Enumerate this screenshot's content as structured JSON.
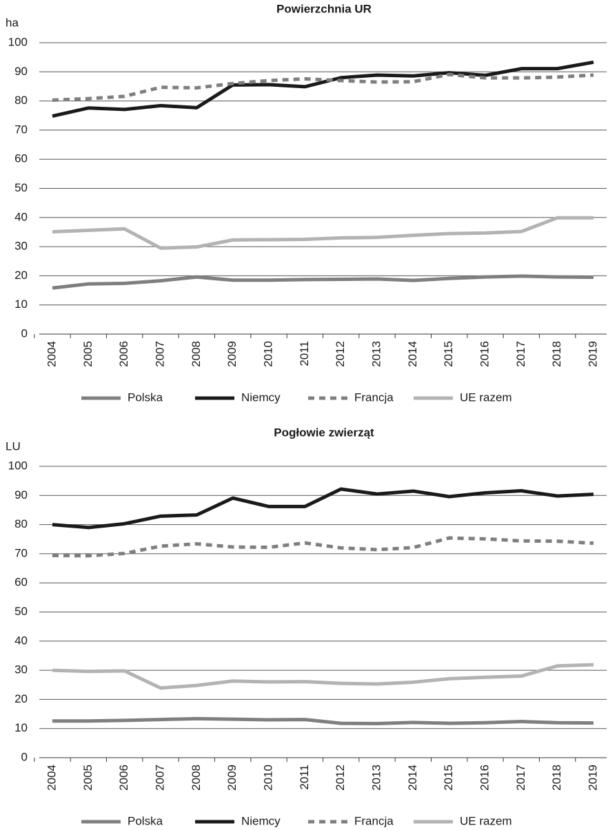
{
  "chart_data": [
    {
      "type": "line",
      "title": "Powierzchnia UR",
      "y_label": "ha",
      "categories": [
        "2004",
        "2005",
        "2006",
        "2007",
        "2008",
        "2009",
        "2010",
        "2011",
        "2012",
        "2013",
        "2014",
        "2015",
        "2016",
        "2017",
        "2018",
        "2019"
      ],
      "series": [
        {
          "name": "Polska",
          "color": "#7f7f7f",
          "values": [
            15.8,
            17.2,
            17.4,
            18.3,
            19.6,
            18.5,
            18.5,
            18.7,
            18.8,
            18.9,
            18.4,
            19.1,
            19.6,
            19.9,
            19.6,
            19.5
          ]
        },
        {
          "name": "Niemcy",
          "color": "#1a1a1a",
          "values": [
            74.8,
            77.6,
            77.1,
            78.4,
            77.7,
            85.5,
            85.6,
            84.9,
            88.0,
            88.9,
            88.6,
            89.7,
            88.8,
            91.1,
            91.1,
            93.3
          ]
        },
        {
          "name": "Francja",
          "color": "#7f7f7f",
          "dashed": true,
          "values": [
            80.3,
            80.8,
            81.6,
            84.7,
            84.5,
            86.0,
            87.0,
            87.6,
            87.0,
            86.5,
            86.6,
            89.1,
            87.9,
            87.9,
            88.2,
            88.9
          ]
        },
        {
          "name": "UE razem",
          "color": "#b3b3b3",
          "values": [
            35.1,
            35.6,
            36.1,
            29.5,
            29.9,
            32.3,
            32.4,
            32.5,
            33.0,
            33.2,
            33.9,
            34.5,
            34.7,
            35.2,
            39.9,
            39.9
          ]
        }
      ],
      "ylim": [
        0,
        100
      ],
      "yticks": [
        0,
        10,
        20,
        30,
        40,
        50,
        60,
        70,
        80,
        90,
        100
      ],
      "grid": true,
      "legend": "bottom"
    },
    {
      "type": "line",
      "title": "Pogłowie zwierząt",
      "y_label": "LU",
      "categories": [
        "2004",
        "2005",
        "2006",
        "2007",
        "2008",
        "2009",
        "2010",
        "2011",
        "2012",
        "2013",
        "2014",
        "2015",
        "2016",
        "2017",
        "2018",
        "2019"
      ],
      "series": [
        {
          "name": "Polska",
          "color": "#7f7f7f",
          "values": [
            12.6,
            12.6,
            12.8,
            13.1,
            13.4,
            13.2,
            13.0,
            13.1,
            11.8,
            11.7,
            12.1,
            11.8,
            12.0,
            12.4,
            12.0,
            11.9
          ]
        },
        {
          "name": "Niemcy",
          "color": "#1a1a1a",
          "values": [
            80.0,
            79.0,
            80.3,
            82.9,
            83.3,
            89.1,
            86.2,
            86.2,
            92.2,
            90.5,
            91.5,
            89.6,
            90.9,
            91.6,
            89.8,
            90.4
          ]
        },
        {
          "name": "Francja",
          "color": "#7f7f7f",
          "dashed": true,
          "values": [
            69.4,
            69.3,
            70.1,
            72.6,
            73.4,
            72.3,
            72.2,
            73.7,
            72.0,
            71.4,
            72.1,
            75.4,
            75.1,
            74.4,
            74.3,
            73.6
          ]
        },
        {
          "name": "UE razem",
          "color": "#b3b3b3",
          "values": [
            30.0,
            29.6,
            29.8,
            23.9,
            24.8,
            26.3,
            26.0,
            26.1,
            25.5,
            25.3,
            25.9,
            27.1,
            27.6,
            28.0,
            31.5,
            31.9
          ]
        }
      ],
      "ylim": [
        0,
        100
      ],
      "yticks": [
        0,
        10,
        20,
        30,
        40,
        50,
        60,
        70,
        80,
        90,
        100
      ],
      "grid": true,
      "legend": "bottom"
    }
  ]
}
